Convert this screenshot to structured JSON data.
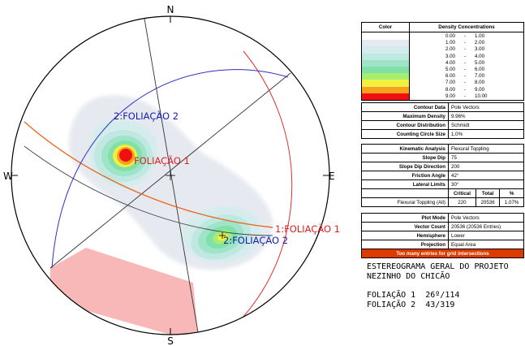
{
  "directions": {
    "north": "N",
    "south": "S",
    "east": "E",
    "west": "W"
  },
  "labels": {
    "set1": "FOLIAÇÃO 1",
    "set1_plane": "1:FOLIAÇÃO 1",
    "set2_plane": "2:FOLIAÇÃO 2",
    "set2": "2:FOLIAÇÃO 2"
  },
  "colors": {
    "set1_plane": "#e03030",
    "set2_plane": "#3030c0",
    "slope_face": "#e86a20",
    "failure_zone": "#f8b8b8",
    "label_red": "#e02020",
    "label_blue": "#1a1ab0"
  },
  "density": {
    "header_color": "Color",
    "header_conc": "Density Concentrations",
    "ranges": [
      {
        "lo": "0.00",
        "hi": "1.00",
        "color": "#ffffff"
      },
      {
        "lo": "1.00",
        "hi": "2.00",
        "color": "#e6eaf0"
      },
      {
        "lo": "2.00",
        "hi": "3.00",
        "color": "#d4ecec"
      },
      {
        "lo": "3.00",
        "hi": "4.00",
        "color": "#bfe8e0"
      },
      {
        "lo": "4.00",
        "hi": "5.00",
        "color": "#9fe4c8"
      },
      {
        "lo": "5.00",
        "hi": "6.00",
        "color": "#7fe0a8"
      },
      {
        "lo": "6.00",
        "hi": "7.00",
        "color": "#a8ec70"
      },
      {
        "lo": "7.00",
        "hi": "8.00",
        "color": "#f0f040"
      },
      {
        "lo": "8.00",
        "hi": "9.00",
        "color": "#f8a020"
      },
      {
        "lo": "9.00",
        "hi": "10.00",
        "color": "#f01010"
      }
    ],
    "dash": "-"
  },
  "contour": [
    {
      "k": "Contour Data",
      "v": "Pole Vectors"
    },
    {
      "k": "Maximum Density",
      "v": "9.96%"
    },
    {
      "k": "Contour Distribution",
      "v": "Schmidt"
    },
    {
      "k": "Counting Circle Size",
      "v": "1.0%"
    }
  ],
  "kinematic": [
    {
      "k": "Kinematic Analysis",
      "v": "Flexural Toppling"
    },
    {
      "k": "Slope Dip",
      "v": "75"
    },
    {
      "k": "Slope Dip Direction",
      "v": "200"
    },
    {
      "k": "Friction Angle",
      "v": "42°"
    },
    {
      "k": "Lateral Limits",
      "v": "30°"
    }
  ],
  "kin_summary": {
    "h_critical": "Critical",
    "h_total": "Total",
    "h_pct": "%",
    "row_label": "Flexural Toppling (All)",
    "critical": "220",
    "total": "20536",
    "pct": "1.07%"
  },
  "plot": [
    {
      "k": "Plot Mode",
      "v": "Pole Vectors"
    },
    {
      "k": "Vector Count",
      "v": "20536 (20536 Entries)"
    },
    {
      "k": "Hemisphere",
      "v": "Lower"
    },
    {
      "k": "Projection",
      "v": "Equal Area"
    }
  ],
  "warning": "Too many entries for grid intersections",
  "notes": {
    "line1": "ESTEREOGRAMA GERAL DO PROJETO",
    "line2": "NEZINHO DO CHICÃO",
    "line3": "FOLIAÇÃO 1  26º/114",
    "line4": "FOLIAÇÃO 2  43/319"
  }
}
